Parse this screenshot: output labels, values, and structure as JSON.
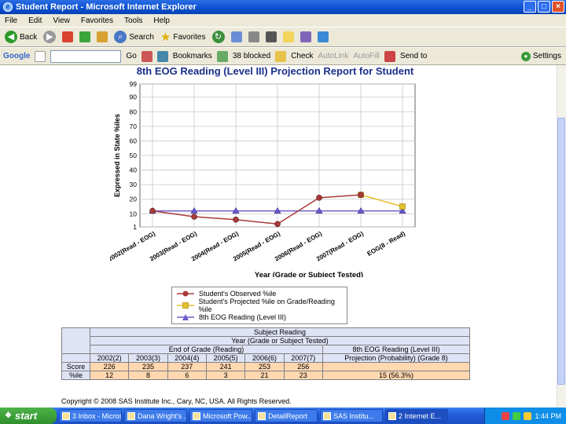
{
  "window": {
    "title": "Student Report - Microsoft Internet Explorer"
  },
  "menu": [
    "File",
    "Edit",
    "View",
    "Favorites",
    "Tools",
    "Help"
  ],
  "toolbar": {
    "back": "Back",
    "search": "Search",
    "favorites": "Favorites"
  },
  "googlebar": {
    "logo": "Google",
    "go": "Go",
    "bookmarks": "Bookmarks",
    "blocked": "38 blocked",
    "check": "Check",
    "autolink": "AutoLink",
    "autofill": "AutoFill",
    "sendto": "Send to",
    "settings": "Settings"
  },
  "report": {
    "title": "8th EOG Reading (Level III) Projection Report for Student",
    "legend": [
      "Student's Observed %ile",
      "Student's Projected %ile on Grade/Reading %ile",
      "8th EOG Reading (Level III)"
    ],
    "table": {
      "subject": "Subject Reading",
      "year_header": "Year (Grade or Subject Tested)",
      "eog_header": "End of Grade (Reading)",
      "proj_header": "8th EOG Reading (Level III)",
      "proj_sub": "Projection (Probability) (Grade 8)",
      "years": [
        "2002(2)",
        "2003(3)",
        "2004(4)",
        "2005(5)",
        "2006(6)",
        "2007(7)"
      ],
      "score_label": "Score",
      "score_values": [
        "226",
        "235",
        "237",
        "241",
        "253",
        "256"
      ],
      "pct_label": "%ile",
      "pct_values": [
        "12",
        "8",
        "6",
        "3",
        "21",
        "23"
      ],
      "projection_value": "15 (56.3%)"
    },
    "copyright": "Copyright © 2008 SAS Institute Inc., Cary, NC, USA. All Rights Reserved."
  },
  "chart_data": {
    "type": "line",
    "title": "8th EOG Reading (Level III) Projection Report for Student",
    "xlabel": "Year (Grade or Subject Tested)",
    "ylabel": "Expressed in State %iles",
    "categories": [
      "2002(Read - EOG)",
      "2003(Read - EOG)",
      "2004(Read - EOG)",
      "2005(Read - EOG)",
      "2006(Read - EOG)",
      "2007(Read - EOG)",
      "EOG(8 - Read)"
    ],
    "yticks": [
      1,
      10,
      20,
      30,
      40,
      50,
      60,
      70,
      80,
      90,
      99
    ],
    "ylim": [
      1,
      99
    ],
    "series": [
      {
        "name": "Student's Observed %ile",
        "values": [
          12,
          8,
          6,
          3,
          21,
          23,
          null
        ],
        "color": "#a83a3a",
        "marker": "circle"
      },
      {
        "name": "Student's Projected %ile on Grade/Reading %ile",
        "values": [
          null,
          null,
          null,
          null,
          null,
          23,
          15
        ],
        "color": "#e3c02b",
        "marker": "square"
      },
      {
        "name": "8th EOG Reading (Level III)",
        "values": [
          12,
          12,
          12,
          12,
          12,
          12,
          12
        ],
        "color": "#6b5bc9",
        "marker": "triangle"
      }
    ],
    "grid": true
  },
  "taskbar": {
    "start": "start",
    "tasks": [
      "3 Inbox - Micros...",
      "Dana Wright's ...",
      "Microsoft Pow...",
      "DetailReport",
      "SAS Institu...",
      "2 Internet E..."
    ],
    "clock": "1:44 PM"
  },
  "colors": {
    "title_blue": "#1a2f8a",
    "observed": "#a83a3a",
    "projected": "#e3c02b",
    "level3": "#6b5bc9"
  }
}
